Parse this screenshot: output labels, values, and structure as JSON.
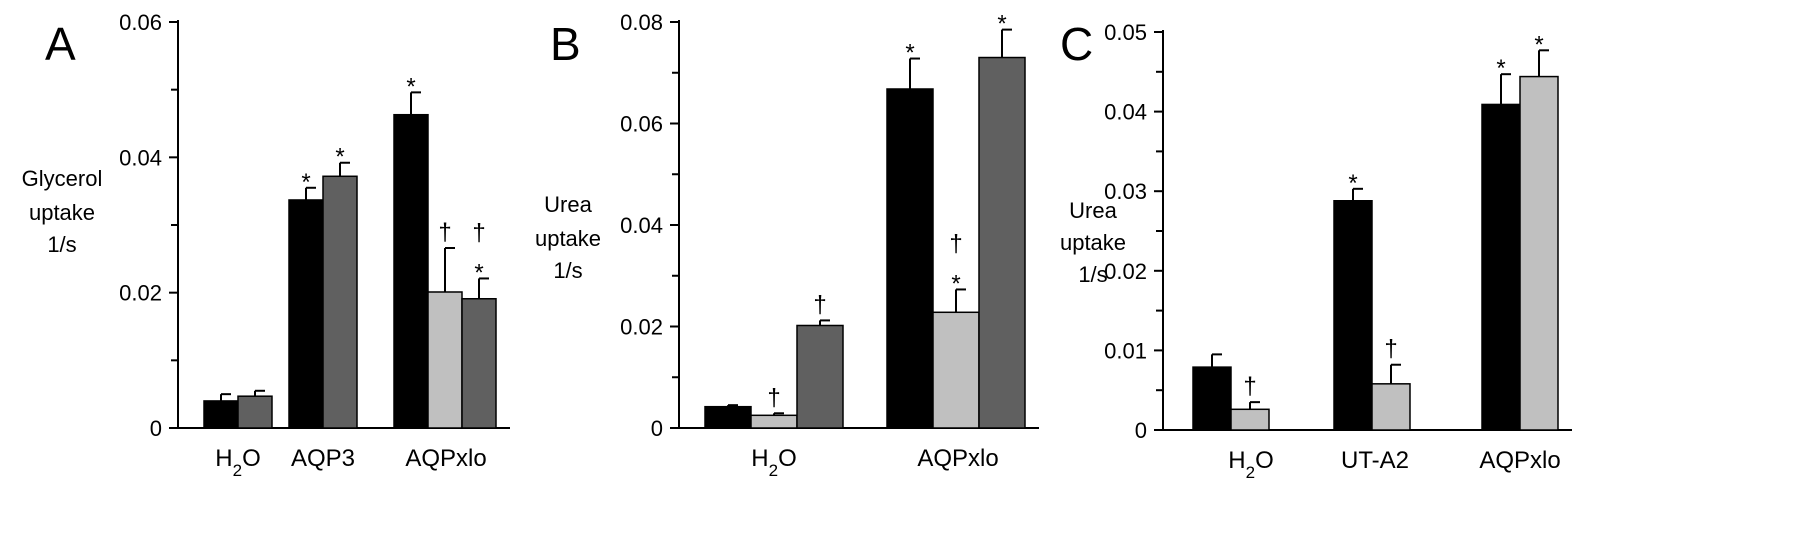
{
  "colors": {
    "black": "#000000",
    "darkgray": "#606060",
    "lightgray": "#c0c0c0"
  },
  "chart_data": [
    {
      "type": "bar",
      "panel_label": "A",
      "ylabel": [
        "Glycerol",
        "uptake",
        "1/s"
      ],
      "ylim": [
        0,
        0.06
      ],
      "yticks": [
        0,
        0.02,
        0.04,
        0.06
      ],
      "ytick_labels": [
        "0",
        "0.02",
        "0.04",
        "0.06"
      ],
      "grid": false,
      "groups": [
        {
          "label": "H2O",
          "bars": [
            {
              "color": "#000000",
              "value": 0.004,
              "error": 0.001,
              "marks": []
            },
            {
              "color": "#606060",
              "value": 0.0047,
              "error": 0.0008,
              "marks": []
            }
          ]
        },
        {
          "label": "AQP3",
          "bars": [
            {
              "color": "#000000",
              "value": 0.0337,
              "error": 0.0018,
              "marks": [
                "*"
              ]
            },
            {
              "color": "#606060",
              "value": 0.0372,
              "error": 0.002,
              "marks": [
                "*"
              ]
            }
          ]
        },
        {
          "label": "AQPxlo",
          "bars": [
            {
              "color": "#000000",
              "value": 0.0463,
              "error": 0.0033,
              "marks": [
                "*"
              ]
            },
            {
              "color": "#c0c0c0",
              "value": 0.0201,
              "error": 0.0065,
              "marks": [
                "†"
              ]
            },
            {
              "color": "#606060",
              "value": 0.0191,
              "error": 0.003,
              "marks": [
                "*",
                "†"
              ]
            }
          ]
        }
      ]
    },
    {
      "type": "bar",
      "panel_label": "B",
      "ylabel": [
        "Urea",
        "uptake",
        "1/s"
      ],
      "ylim": [
        0,
        0.08
      ],
      "yticks": [
        0,
        0.02,
        0.04,
        0.06,
        0.08
      ],
      "ytick_labels": [
        "0",
        "0.02",
        "0.04",
        "0.06",
        "0.08"
      ],
      "grid": false,
      "groups": [
        {
          "label": "H2O",
          "bars": [
            {
              "color": "#000000",
              "value": 0.0042,
              "error": 0.0003,
              "marks": []
            },
            {
              "color": "#c0c0c0",
              "value": 0.0025,
              "error": 0.0004,
              "marks": [
                "†"
              ]
            },
            {
              "color": "#606060",
              "value": 0.0202,
              "error": 0.001,
              "marks": [
                "†"
              ]
            }
          ]
        },
        {
          "label": "AQPxlo",
          "bars": [
            {
              "color": "#000000",
              "value": 0.0668,
              "error": 0.006,
              "marks": [
                "*"
              ]
            },
            {
              "color": "#c0c0c0",
              "value": 0.0228,
              "error": 0.0045,
              "marks": [
                "*",
                "†"
              ]
            },
            {
              "color": "#606060",
              "value": 0.073,
              "error": 0.0055,
              "marks": [
                "*"
              ]
            }
          ]
        }
      ]
    },
    {
      "type": "bar",
      "panel_label": "C",
      "ylabel": [
        "Urea",
        "uptake",
        "1/s"
      ],
      "ylim": [
        0,
        0.05
      ],
      "yticks": [
        0,
        0.01,
        0.02,
        0.03,
        0.04,
        0.05
      ],
      "ytick_labels": [
        "0",
        "0.01",
        "0.02",
        "0.03",
        "0.04",
        "0.05"
      ],
      "grid": false,
      "groups": [
        {
          "label": "H2O",
          "bars": [
            {
              "color": "#000000",
              "value": 0.0079,
              "error": 0.0016,
              "marks": []
            },
            {
              "color": "#c0c0c0",
              "value": 0.0026,
              "error": 0.0009,
              "marks": [
                "†"
              ]
            }
          ]
        },
        {
          "label": "UT-A2",
          "bars": [
            {
              "color": "#000000",
              "value": 0.0288,
              "error": 0.0015,
              "marks": [
                "*"
              ]
            },
            {
              "color": "#c0c0c0",
              "value": 0.0058,
              "error": 0.0024,
              "marks": [
                "†"
              ]
            }
          ]
        },
        {
          "label": "AQPxlo",
          "bars": [
            {
              "color": "#000000",
              "value": 0.0409,
              "error": 0.0038,
              "marks": [
                "*"
              ]
            },
            {
              "color": "#c0c0c0",
              "value": 0.0444,
              "error": 0.0033,
              "marks": [
                "*"
              ]
            }
          ]
        }
      ]
    }
  ]
}
